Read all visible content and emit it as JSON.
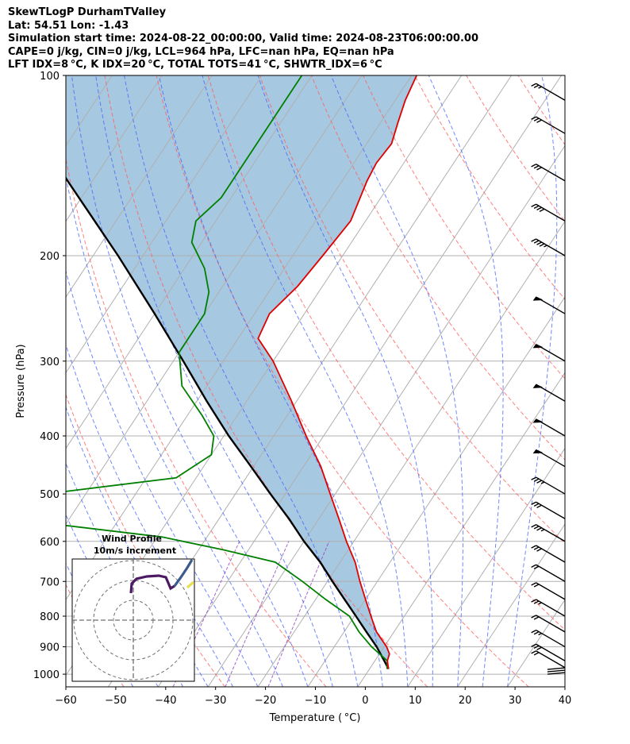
{
  "header": {
    "line1": "SkewTLogP DurhamTValley",
    "line2": "Lat: 54.51   Lon: -1.43",
    "line3": "Simulation start time: 2024-08-22_00:00:00, Valid time: 2024-08-23T06:00:00.00",
    "line4": "CAPE=0 j/kg, CIN=0 j/kg, LCL=964 hPa, LFC=nan hPa, EQ=nan hPa",
    "line5": "LFT IDX=8 °C, K IDX=20 °C, TOTAL TOTS=41 °C, SHWTR_IDX=6 °C"
  },
  "colors": {
    "temperature": "#e00000",
    "dewpoint": "#008000",
    "parcel": "#000000",
    "cape_fill": "#a6c8e0",
    "dry_adiabat": "#ff6060",
    "moist_adiabat": "#4060ff",
    "mixing_ratio": "#9040c0",
    "isotherm": "#b0b0b0",
    "isobar": "#b0b0b0"
  },
  "chart_data": [
    {
      "type": "line",
      "subtype": "skew-t log-p",
      "xlabel": "Temperature ( °C)",
      "ylabel": "Pressure (hPa)",
      "xlim": [
        -60,
        40
      ],
      "ylim": [
        1050,
        100
      ],
      "y_scale": "log",
      "x_ticks": [
        "−60",
        "−50",
        "−40",
        "−30",
        "−20",
        "−10",
        "0",
        "10",
        "20",
        "30",
        "40"
      ],
      "x_tick_values": [
        -60,
        -50,
        -40,
        -30,
        -20,
        -10,
        0,
        10,
        20,
        30,
        40
      ],
      "y_ticks": [
        "100",
        "200",
        "300",
        "400",
        "500",
        "600",
        "700",
        "800",
        "900",
        "1000"
      ],
      "y_tick_values": [
        100,
        200,
        300,
        400,
        500,
        600,
        700,
        800,
        900,
        1000
      ],
      "grid": true,
      "series": [
        {
          "role": "temperature",
          "p": [
            980,
            950,
            925,
            900,
            850,
            800,
            750,
            700,
            650,
            600,
            550,
            500,
            450,
            400,
            350,
            300,
            275,
            250,
            225,
            200,
            175,
            150,
            140,
            130,
            120,
            110,
            100
          ],
          "t": [
            13.8,
            12.5,
            12.0,
            10.5,
            6.5,
            3.3,
            0.0,
            -3.5,
            -7.0,
            -11.5,
            -16.0,
            -21.0,
            -26.5,
            -33.5,
            -41.0,
            -50.0,
            -56.0,
            -57.0,
            -55.0,
            -54.0,
            -53.0,
            -55.0,
            -55.5,
            -55.0,
            -56.5,
            -58.0,
            -59.0
          ]
        },
        {
          "role": "dewpoint",
          "p": [
            980,
            950,
            925,
            900,
            850,
            800,
            750,
            700,
            650,
            620,
            590,
            550,
            520,
            505,
            470,
            430,
            400,
            370,
            330,
            290,
            250,
            230,
            210,
            190,
            175,
            160,
            100
          ],
          "t": [
            13.5,
            12.5,
            10.0,
            7.5,
            3.0,
            -1.0,
            -8.0,
            -15.0,
            -23.0,
            -35.0,
            -49.0,
            -82.0,
            -88.0,
            -82.0,
            -54.0,
            -50.0,
            -52.0,
            -57.0,
            -65.0,
            -70.0,
            -70.0,
            -72.0,
            -76.0,
            -82.0,
            -84.0,
            -82.0,
            -82.0
          ]
        },
        {
          "role": "parcel",
          "p": [
            980,
            964,
            900,
            850,
            800,
            750,
            700,
            650,
            600,
            550,
            500,
            450,
            400,
            350,
            300,
            250,
            200,
            150,
            100
          ],
          "t": [
            13.8,
            12.8,
            8.5,
            4.5,
            0.3,
            -4.2,
            -9.0,
            -14.0,
            -20.0,
            -26.0,
            -33.0,
            -40.5,
            -49.0,
            -58.0,
            -68.0,
            -80.0,
            -95.0,
            -115.0,
            -142.0
          ]
        }
      ]
    },
    {
      "type": "line",
      "subtype": "hodograph",
      "title": "Wind Profile",
      "subtitle": "10m/s increment",
      "rings_ms": [
        10,
        20,
        30
      ]
    }
  ],
  "wind_barbs": [
    {
      "p": 1000,
      "barbs": "calm"
    },
    {
      "p": 975,
      "barbs": "2 full"
    },
    {
      "p": 950,
      "barbs": "3 full"
    },
    {
      "p": 900,
      "barbs": "2 full + half"
    },
    {
      "p": 850,
      "barbs": "2 full"
    },
    {
      "p": 800,
      "barbs": "2 full + half"
    },
    {
      "p": 750,
      "barbs": "2 full"
    },
    {
      "p": 700,
      "barbs": "2 full"
    },
    {
      "p": 650,
      "barbs": "3 full"
    },
    {
      "p": 600,
      "barbs": "3 full + half"
    },
    {
      "p": 550,
      "barbs": "3 full"
    },
    {
      "p": 500,
      "barbs": "3 full + half"
    },
    {
      "p": 450,
      "barbs": "flag"
    },
    {
      "p": 400,
      "barbs": "flag"
    },
    {
      "p": 350,
      "barbs": "flag"
    },
    {
      "p": 300,
      "barbs": "flag"
    },
    {
      "p": 250,
      "barbs": "flag"
    },
    {
      "p": 200,
      "barbs": "4 full + half"
    },
    {
      "p": 175,
      "barbs": "4 full"
    },
    {
      "p": 150,
      "barbs": "3 full"
    },
    {
      "p": 125,
      "barbs": "3 full"
    },
    {
      "p": 110,
      "barbs": "2 full + half"
    }
  ]
}
